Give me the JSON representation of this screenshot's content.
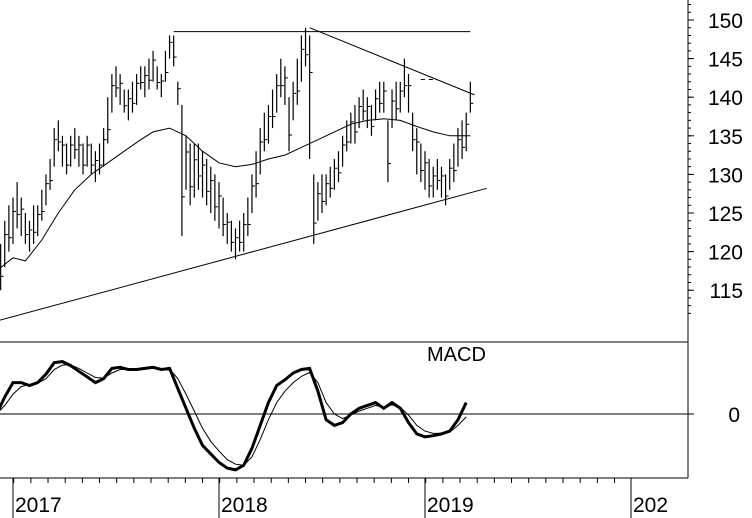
{
  "chart_data": [
    {
      "type": "ohlc-bar",
      "price_range": [
        110,
        153
      ],
      "y_ticks": [
        115,
        120,
        125,
        130,
        135,
        140,
        145,
        150
      ],
      "x_tick_labels": [
        "2017",
        "2018",
        "2019",
        "202"
      ],
      "price_bars": [
        [
          2016.92,
          112,
          117
        ],
        [
          2016.94,
          115,
          121
        ],
        [
          2016.96,
          118,
          124
        ],
        [
          2016.98,
          120,
          126
        ],
        [
          2017.0,
          121,
          127
        ],
        [
          2017.02,
          123,
          129
        ],
        [
          2017.04,
          122,
          127
        ],
        [
          2017.06,
          121,
          125
        ],
        [
          2017.08,
          120,
          124
        ],
        [
          2017.1,
          121,
          126
        ],
        [
          2017.12,
          122,
          126
        ],
        [
          2017.14,
          124,
          128
        ],
        [
          2017.16,
          126,
          130
        ],
        [
          2017.18,
          128,
          132
        ],
        [
          2017.2,
          131,
          136
        ],
        [
          2017.22,
          133,
          137
        ],
        [
          2017.24,
          131,
          135
        ],
        [
          2017.26,
          130,
          134
        ],
        [
          2017.28,
          131,
          135
        ],
        [
          2017.3,
          132,
          136
        ],
        [
          2017.32,
          131,
          135
        ],
        [
          2017.34,
          130,
          134
        ],
        [
          2017.36,
          131,
          135
        ],
        [
          2017.38,
          130,
          134
        ],
        [
          2017.4,
          129,
          133
        ],
        [
          2017.42,
          130,
          134
        ],
        [
          2017.44,
          131,
          136
        ],
        [
          2017.46,
          134,
          140
        ],
        [
          2017.48,
          138,
          143
        ],
        [
          2017.5,
          140,
          144
        ],
        [
          2017.52,
          139,
          143
        ],
        [
          2017.54,
          138,
          141
        ],
        [
          2017.56,
          137,
          141
        ],
        [
          2017.58,
          138,
          142
        ],
        [
          2017.6,
          139,
          143
        ],
        [
          2017.62,
          141,
          144
        ],
        [
          2017.64,
          140,
          144
        ],
        [
          2017.66,
          141,
          145
        ],
        [
          2017.68,
          142,
          146
        ],
        [
          2017.7,
          141,
          144
        ],
        [
          2017.72,
          140,
          143
        ],
        [
          2017.74,
          142,
          146
        ],
        [
          2017.76,
          145,
          148
        ],
        [
          2017.78,
          144,
          148
        ],
        [
          2017.8,
          139,
          142
        ],
        [
          2017.82,
          122,
          139
        ],
        [
          2017.84,
          128,
          135
        ],
        [
          2017.86,
          126,
          134
        ],
        [
          2017.88,
          127,
          134
        ],
        [
          2017.9,
          128,
          134
        ],
        [
          2017.92,
          127,
          133
        ],
        [
          2017.94,
          126,
          132
        ],
        [
          2017.96,
          125,
          131
        ],
        [
          2017.98,
          124,
          130
        ],
        [
          2018.0,
          123,
          129
        ],
        [
          2018.02,
          122,
          127
        ],
        [
          2018.04,
          121,
          125
        ],
        [
          2018.06,
          120,
          124
        ],
        [
          2018.08,
          119,
          123
        ],
        [
          2018.1,
          120,
          124
        ],
        [
          2018.12,
          120,
          125
        ],
        [
          2018.14,
          122,
          127
        ],
        [
          2018.16,
          125,
          130
        ],
        [
          2018.18,
          127,
          133
        ],
        [
          2018.2,
          130,
          136
        ],
        [
          2018.22,
          133,
          138
        ],
        [
          2018.24,
          134,
          139
        ],
        [
          2018.26,
          136,
          141
        ],
        [
          2018.28,
          138,
          143
        ],
        [
          2018.3,
          140,
          145
        ],
        [
          2018.32,
          139,
          144
        ],
        [
          2018.34,
          133,
          140
        ],
        [
          2018.36,
          137,
          142
        ],
        [
          2018.38,
          139,
          145
        ],
        [
          2018.4,
          142,
          148
        ],
        [
          2018.42,
          144,
          149
        ],
        [
          2018.44,
          132,
          148
        ],
        [
          2018.46,
          121,
          130
        ],
        [
          2018.48,
          124,
          129
        ],
        [
          2018.5,
          125,
          130
        ],
        [
          2018.52,
          126,
          130
        ],
        [
          2018.54,
          127,
          131
        ],
        [
          2018.56,
          128,
          132
        ],
        [
          2018.58,
          129,
          133
        ],
        [
          2018.6,
          131,
          135
        ],
        [
          2018.62,
          133,
          137
        ],
        [
          2018.64,
          134,
          138
        ],
        [
          2018.66,
          134,
          139
        ],
        [
          2018.68,
          136,
          140
        ],
        [
          2018.7,
          137,
          141
        ],
        [
          2018.72,
          136,
          140
        ],
        [
          2018.74,
          135,
          139
        ],
        [
          2018.76,
          137,
          141
        ],
        [
          2018.78,
          138,
          142
        ],
        [
          2018.8,
          138,
          142
        ],
        [
          2018.82,
          129,
          137
        ],
        [
          2018.84,
          136,
          141
        ],
        [
          2018.86,
          137,
          142
        ],
        [
          2018.88,
          138,
          142
        ],
        [
          2018.9,
          140,
          145
        ],
        [
          2018.92,
          138,
          143
        ],
        [
          2018.94,
          133,
          138
        ],
        [
          2018.96,
          130,
          136
        ],
        [
          2018.98,
          129,
          134
        ],
        [
          2019.0,
          128,
          133
        ],
        [
          2019.02,
          127,
          132
        ],
        [
          2019.04,
          127,
          131
        ],
        [
          2019.06,
          128,
          132
        ],
        [
          2019.08,
          127,
          131
        ],
        [
          2019.1,
          126,
          130
        ],
        [
          2019.12,
          128,
          132
        ],
        [
          2019.14,
          129,
          134
        ],
        [
          2019.16,
          131,
          136
        ],
        [
          2019.18,
          132,
          137
        ],
        [
          2019.2,
          133,
          138
        ],
        [
          2019.22,
          138,
          142
        ]
      ],
      "moving_average": [
        [
          2016.92,
          117.5
        ],
        [
          2017.0,
          119.2
        ],
        [
          2017.06,
          118.8
        ],
        [
          2017.14,
          121.5
        ],
        [
          2017.22,
          125.0
        ],
        [
          2017.3,
          128.0
        ],
        [
          2017.38,
          130.0
        ],
        [
          2017.46,
          131.5
        ],
        [
          2017.54,
          133.0
        ],
        [
          2017.62,
          134.5
        ],
        [
          2017.68,
          135.5
        ],
        [
          2017.76,
          136.0
        ],
        [
          2017.84,
          135.0
        ],
        [
          2017.92,
          133.0
        ],
        [
          2018.0,
          131.5
        ],
        [
          2018.08,
          131.0
        ],
        [
          2018.16,
          131.3
        ],
        [
          2018.24,
          132.0
        ],
        [
          2018.32,
          132.5
        ],
        [
          2018.4,
          133.5
        ],
        [
          2018.48,
          134.5
        ],
        [
          2018.56,
          135.5
        ],
        [
          2018.64,
          136.5
        ],
        [
          2018.72,
          137.0
        ],
        [
          2018.8,
          137.2
        ],
        [
          2018.88,
          137.0
        ],
        [
          2018.96,
          136.2
        ],
        [
          2019.04,
          135.5
        ],
        [
          2019.12,
          135.0
        ],
        [
          2019.22,
          135.0
        ]
      ],
      "trendlines": [
        {
          "from": [
            2016.92,
            111
          ],
          "to": [
            2019.3,
            128.2
          ]
        },
        {
          "from": [
            2017.78,
            148.5
          ],
          "to": [
            2019.22,
            148.5
          ]
        },
        {
          "from": [
            2018.44,
            149
          ],
          "to": [
            2019.24,
            140.3
          ]
        }
      ],
      "resistance_dashed": {
        "from": [
          2018.98,
          142.3
        ],
        "to": [
          2019.05,
          142.3
        ]
      }
    },
    {
      "type": "line",
      "title": "MACD",
      "zero_label": "0",
      "y_range": [
        -1.0,
        1.0
      ],
      "series": [
        {
          "style": "thick",
          "values": [
            [
              2016.92,
              0.0
            ],
            [
              2016.96,
              0.3
            ],
            [
              2017.0,
              0.55
            ],
            [
              2017.04,
              0.55
            ],
            [
              2017.08,
              0.5
            ],
            [
              2017.12,
              0.55
            ],
            [
              2017.16,
              0.7
            ],
            [
              2017.2,
              0.9
            ],
            [
              2017.24,
              0.92
            ],
            [
              2017.28,
              0.85
            ],
            [
              2017.32,
              0.75
            ],
            [
              2017.36,
              0.65
            ],
            [
              2017.4,
              0.55
            ],
            [
              2017.44,
              0.62
            ],
            [
              2017.48,
              0.8
            ],
            [
              2017.52,
              0.82
            ],
            [
              2017.56,
              0.78
            ],
            [
              2017.6,
              0.78
            ],
            [
              2017.64,
              0.8
            ],
            [
              2017.68,
              0.82
            ],
            [
              2017.72,
              0.78
            ],
            [
              2017.76,
              0.8
            ],
            [
              2017.8,
              0.45
            ],
            [
              2017.84,
              0.1
            ],
            [
              2017.88,
              -0.25
            ],
            [
              2017.92,
              -0.55
            ],
            [
              2017.96,
              -0.7
            ],
            [
              2018.0,
              -0.85
            ],
            [
              2018.04,
              -0.95
            ],
            [
              2018.08,
              -0.98
            ],
            [
              2018.12,
              -0.9
            ],
            [
              2018.16,
              -0.6
            ],
            [
              2018.2,
              -0.2
            ],
            [
              2018.24,
              0.2
            ],
            [
              2018.28,
              0.5
            ],
            [
              2018.32,
              0.6
            ],
            [
              2018.36,
              0.72
            ],
            [
              2018.4,
              0.78
            ],
            [
              2018.44,
              0.8
            ],
            [
              2018.48,
              0.4
            ],
            [
              2018.52,
              -0.1
            ],
            [
              2018.56,
              -0.2
            ],
            [
              2018.6,
              -0.15
            ],
            [
              2018.64,
              0.0
            ],
            [
              2018.68,
              0.1
            ],
            [
              2018.72,
              0.15
            ],
            [
              2018.76,
              0.2
            ],
            [
              2018.8,
              0.1
            ],
            [
              2018.84,
              0.2
            ],
            [
              2018.88,
              0.1
            ],
            [
              2018.92,
              -0.15
            ],
            [
              2018.96,
              -0.35
            ],
            [
              2019.0,
              -0.4
            ],
            [
              2019.04,
              -0.38
            ],
            [
              2019.08,
              -0.35
            ],
            [
              2019.12,
              -0.3
            ],
            [
              2019.16,
              -0.1
            ],
            [
              2019.2,
              0.2
            ]
          ]
        },
        {
          "style": "thin",
          "values": [
            [
              2016.92,
              0.0
            ],
            [
              2016.96,
              0.15
            ],
            [
              2017.0,
              0.35
            ],
            [
              2017.04,
              0.48
            ],
            [
              2017.08,
              0.52
            ],
            [
              2017.12,
              0.54
            ],
            [
              2017.16,
              0.62
            ],
            [
              2017.2,
              0.78
            ],
            [
              2017.24,
              0.86
            ],
            [
              2017.28,
              0.86
            ],
            [
              2017.32,
              0.8
            ],
            [
              2017.36,
              0.72
            ],
            [
              2017.4,
              0.64
            ],
            [
              2017.44,
              0.63
            ],
            [
              2017.48,
              0.72
            ],
            [
              2017.52,
              0.78
            ],
            [
              2017.56,
              0.78
            ],
            [
              2017.6,
              0.78
            ],
            [
              2017.64,
              0.79
            ],
            [
              2017.68,
              0.8
            ],
            [
              2017.72,
              0.79
            ],
            [
              2017.76,
              0.79
            ],
            [
              2017.8,
              0.62
            ],
            [
              2017.84,
              0.35
            ],
            [
              2017.88,
              0.05
            ],
            [
              2017.92,
              -0.25
            ],
            [
              2017.96,
              -0.48
            ],
            [
              2018.0,
              -0.65
            ],
            [
              2018.04,
              -0.8
            ],
            [
              2018.08,
              -0.88
            ],
            [
              2018.12,
              -0.9
            ],
            [
              2018.16,
              -0.75
            ],
            [
              2018.2,
              -0.45
            ],
            [
              2018.24,
              -0.1
            ],
            [
              2018.28,
              0.2
            ],
            [
              2018.32,
              0.4
            ],
            [
              2018.36,
              0.55
            ],
            [
              2018.4,
              0.66
            ],
            [
              2018.44,
              0.73
            ],
            [
              2018.48,
              0.55
            ],
            [
              2018.52,
              0.2
            ],
            [
              2018.56,
              0.0
            ],
            [
              2018.6,
              -0.08
            ],
            [
              2018.64,
              -0.02
            ],
            [
              2018.68,
              0.05
            ],
            [
              2018.72,
              0.1
            ],
            [
              2018.76,
              0.15
            ],
            [
              2018.8,
              0.12
            ],
            [
              2018.84,
              0.16
            ],
            [
              2018.88,
              0.12
            ],
            [
              2018.92,
              -0.02
            ],
            [
              2018.96,
              -0.2
            ],
            [
              2019.0,
              -0.3
            ],
            [
              2019.04,
              -0.34
            ],
            [
              2019.08,
              -0.34
            ],
            [
              2019.12,
              -0.32
            ],
            [
              2019.16,
              -0.2
            ],
            [
              2019.2,
              -0.05
            ]
          ]
        }
      ]
    }
  ]
}
